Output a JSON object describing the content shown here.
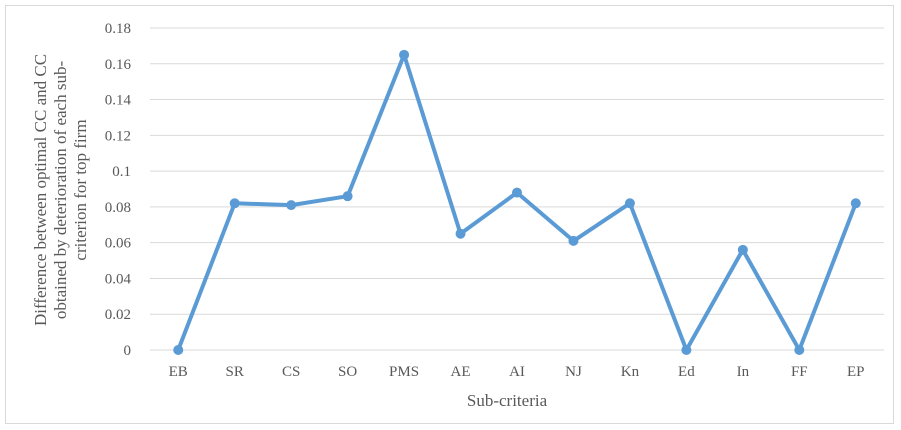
{
  "chart_data": {
    "type": "line",
    "title": "",
    "xlabel": "Sub-criteria",
    "ylabel_lines": [
      "Difference between optimal CC and CC",
      "obtained by deterioration of each sub-",
      "criterion for top firm"
    ],
    "categories": [
      "EB",
      "SR",
      "CS",
      "SO",
      "PMS",
      "AE",
      "AI",
      "NJ",
      "Kn",
      "Ed",
      "In",
      "FF",
      "EP"
    ],
    "series": [
      {
        "values": [
          0,
          0.082,
          0.081,
          0.086,
          0.165,
          0.065,
          0.088,
          0.061,
          0.082,
          0,
          0.056,
          0,
          0.082
        ],
        "color": "#5b9bd5"
      }
    ],
    "ylim": [
      0,
      0.18
    ],
    "yticks": [
      "0",
      "0.02",
      "0.04",
      "0.06",
      "0.08",
      "0.1",
      "0.12",
      "0.14",
      "0.16",
      "0.18"
    ],
    "grid": true,
    "legend": "none"
  }
}
